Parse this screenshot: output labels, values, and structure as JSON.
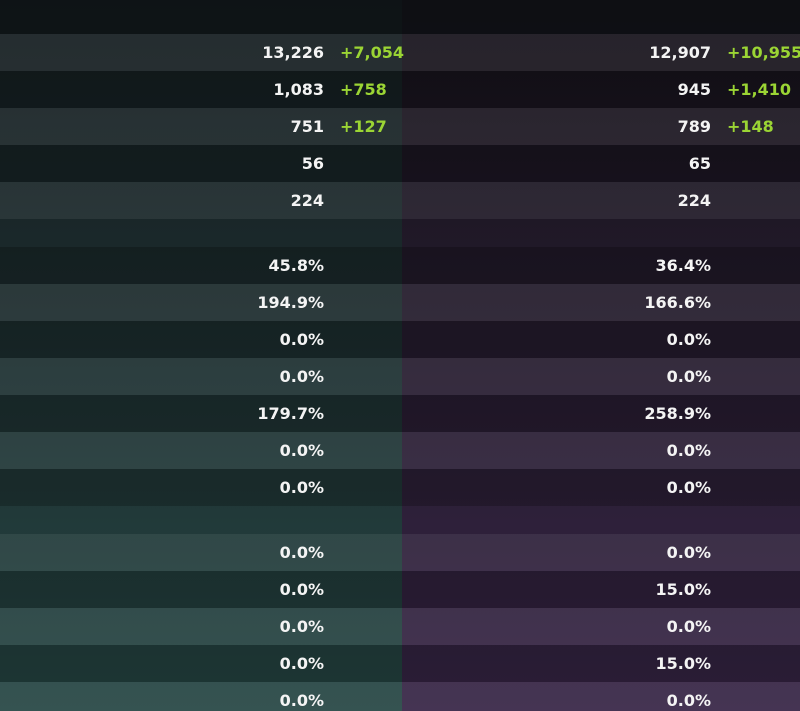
{
  "sections": [
    {
      "rows": [
        {
          "left": "13,226",
          "left_bonus": "+7,054",
          "right": "12,907",
          "right_bonus": "+10,955"
        },
        {
          "left": "1,083",
          "left_bonus": "+758",
          "right": "945",
          "right_bonus": "+1,410"
        },
        {
          "left": "751",
          "left_bonus": "+127",
          "right": "789",
          "right_bonus": "+148"
        },
        {
          "left": "56",
          "right": "65"
        },
        {
          "left": "224",
          "right": "224"
        }
      ]
    },
    {
      "rows": [
        {
          "left": "45.8%",
          "right": "36.4%"
        },
        {
          "left": "194.9%",
          "right": "166.6%"
        },
        {
          "left": "0.0%",
          "right": "0.0%"
        },
        {
          "left": "0.0%",
          "right": "0.0%"
        },
        {
          "left": "179.7%",
          "right": "258.9%"
        },
        {
          "left": "0.0%",
          "right": "0.0%"
        },
        {
          "left": "0.0%",
          "right": "0.0%"
        }
      ]
    },
    {
      "rows": [
        {
          "left": "0.0%",
          "right": "0.0%"
        },
        {
          "left": "0.0%",
          "right": "15.0%"
        },
        {
          "left": "0.0%",
          "right": "0.0%"
        },
        {
          "left": "0.0%",
          "right": "15.0%"
        },
        {
          "left": "0.0%",
          "right": "0.0%"
        }
      ]
    }
  ]
}
